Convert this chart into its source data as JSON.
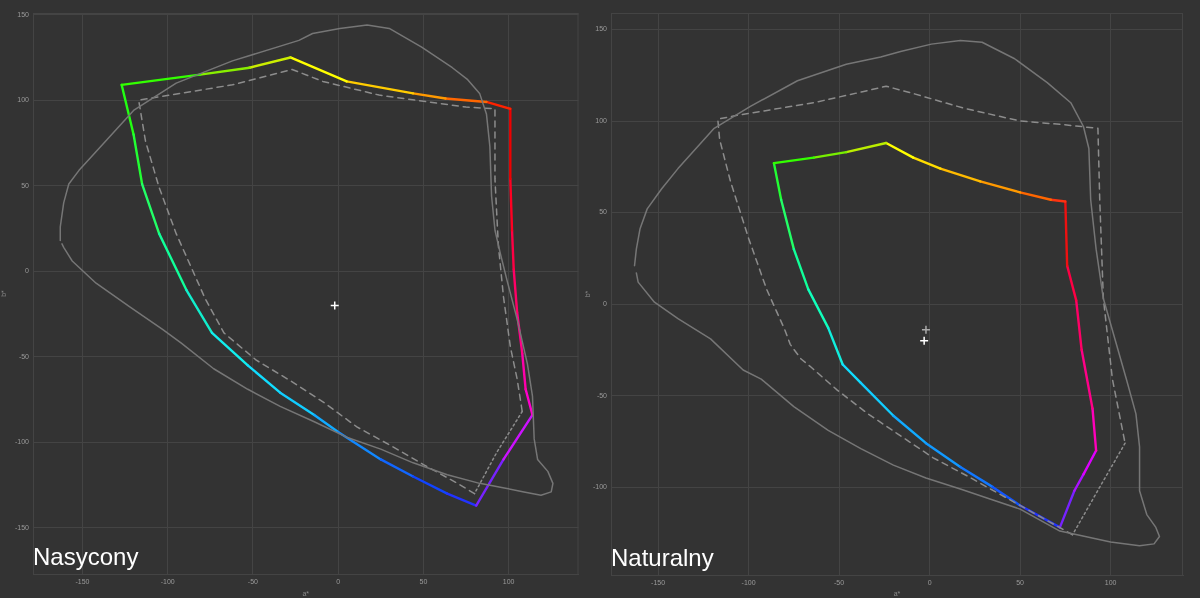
{
  "chart_data": [
    {
      "type": "line",
      "title": "Nasycony",
      "xlabel": "a*",
      "ylabel": "b*",
      "xlim": [
        -179,
        141
      ],
      "ylim": [
        -177,
        151
      ],
      "xticks": [
        -150,
        -100,
        -50,
        0,
        50,
        100
      ],
      "yticks": [
        -150,
        -100,
        -50,
        0,
        50,
        100,
        150
      ],
      "grid": true,
      "series": [
        {
          "color": "#767676",
          "x": [
            -163,
            -163,
            -161,
            -158,
            -152,
            -141,
            -120,
            -95,
            -62,
            -23,
            -15,
            1,
            17,
            30,
            49,
            67,
            76,
            83,
            87,
            89,
            90,
            92,
            95,
            99,
            105,
            111,
            114,
            115,
            117,
            123,
            126,
            125,
            119,
            109,
            99,
            83,
            64,
            44,
            25,
            5,
            -14,
            -34,
            -53,
            -73,
            -92,
            -103,
            -122,
            -142,
            -156,
            -161,
            -162
          ],
          "values": [
            18,
            26,
            40,
            51,
            59,
            71,
            94,
            110,
            123,
            135,
            139,
            142,
            144,
            142,
            131,
            119,
            112,
            104,
            92,
            73,
            44,
            24,
            11,
            -5,
            -28,
            -54,
            -73,
            -98,
            -110,
            -117,
            -124,
            -129,
            -131,
            -129,
            -127,
            -124,
            -119,
            -112,
            -104,
            -97,
            -88,
            -79,
            -69,
            -57,
            -42,
            -34,
            -21,
            -7,
            6,
            14,
            16
          ]
        },
        {
          "color": "#8c8c8c",
          "line_style": "dashed",
          "x": [
            80,
            70,
            50,
            31,
            11,
            -8,
            -28,
            -48,
            -67,
            -78,
            -95,
            -105,
            -113,
            -117,
            -105,
            -62,
            -27,
            -9,
            24,
            53,
            75,
            92,
            92,
            94,
            97,
            101,
            105,
            108
          ],
          "values": [
            -130,
            -124,
            -113,
            -102,
            -91,
            -77,
            -64,
            -52,
            -36,
            -16,
            22,
            49,
            76,
            100,
            102,
            109,
            118,
            111,
            103,
            99,
            96,
            95,
            54,
            15,
            -15,
            -44,
            -63,
            -82
          ]
        },
        {
          "color": "#8c8c8c",
          "line_style": "dotted",
          "x": [
            108,
            93,
            80
          ],
          "values": [
            -82,
            -106,
            -130
          ]
        },
        {
          "color": "#33ff00",
          "x": [
            -127,
            -81
          ],
          "values": [
            109,
            115
          ]
        },
        {
          "color": "#88ee00",
          "x": [
            -81,
            -52
          ],
          "values": [
            115,
            119
          ]
        },
        {
          "color": "#ccee00",
          "x": [
            -52,
            -28
          ],
          "values": [
            119,
            125
          ]
        },
        {
          "color": "#ffff00",
          "x": [
            -28,
            5
          ],
          "values": [
            125,
            111
          ]
        },
        {
          "color": "#ffcc00",
          "x": [
            5,
            44
          ],
          "values": [
            111,
            104
          ]
        },
        {
          "color": "#ff9900",
          "x": [
            44,
            63
          ],
          "values": [
            104,
            101
          ]
        },
        {
          "color": "#ff6600",
          "x": [
            63,
            87
          ],
          "values": [
            101,
            99
          ]
        },
        {
          "color": "#ff2200",
          "x": [
            87,
            101
          ],
          "values": [
            99,
            95
          ]
        },
        {
          "color": "#ee0000",
          "x": [
            101,
            101
          ],
          "values": [
            95,
            54
          ]
        },
        {
          "color": "#ff0022",
          "x": [
            101,
            102
          ],
          "values": [
            54,
            24
          ]
        },
        {
          "color": "#ff0044",
          "x": [
            102,
            103
          ],
          "values": [
            24,
            1
          ]
        },
        {
          "color": "#ff0066",
          "x": [
            103,
            105
          ],
          "values": [
            1,
            -24
          ]
        },
        {
          "color": "#ff0088",
          "x": [
            105,
            108
          ],
          "values": [
            -24,
            -48
          ]
        },
        {
          "color": "#ff00aa",
          "x": [
            108,
            110
          ],
          "values": [
            -48,
            -69
          ]
        },
        {
          "color": "#ff00cc",
          "x": [
            110,
            114
          ],
          "values": [
            -69,
            -84
          ]
        },
        {
          "color": "#cc11ff",
          "x": [
            114,
            97
          ],
          "values": [
            -84,
            -110
          ]
        },
        {
          "color": "#7722ff",
          "x": [
            97,
            81
          ],
          "values": [
            -110,
            -137
          ]
        },
        {
          "color": "#2233ff",
          "x": [
            81,
            64
          ],
          "values": [
            -137,
            -130
          ]
        },
        {
          "color": "#1144ff",
          "x": [
            64,
            44
          ],
          "values": [
            -130,
            -120
          ]
        },
        {
          "color": "#1166ff",
          "x": [
            44,
            25
          ],
          "values": [
            -120,
            -110
          ]
        },
        {
          "color": "#1188ff",
          "x": [
            25,
            0
          ],
          "values": [
            -110,
            -94
          ]
        },
        {
          "color": "#11aaff",
          "x": [
            0,
            -14
          ],
          "values": [
            -94,
            -84
          ]
        },
        {
          "color": "#11ccff",
          "x": [
            -14,
            -34
          ],
          "values": [
            -84,
            -71
          ]
        },
        {
          "color": "#11ddff",
          "x": [
            -34,
            -53
          ],
          "values": [
            -71,
            -55
          ]
        },
        {
          "color": "#11eeee",
          "x": [
            -53,
            -74
          ],
          "values": [
            -55,
            -36
          ]
        },
        {
          "color": "#11eecc",
          "x": [
            -74,
            -89
          ],
          "values": [
            -36,
            -11
          ]
        },
        {
          "color": "#11ff99",
          "x": [
            -89,
            -105
          ],
          "values": [
            -11,
            22
          ]
        },
        {
          "color": "#22ff66",
          "x": [
            -105,
            -115
          ],
          "values": [
            22,
            51
          ]
        },
        {
          "color": "#22ff33",
          "x": [
            -115,
            -120
          ],
          "values": [
            51,
            80
          ]
        },
        {
          "color": "#22ff11",
          "x": [
            -120,
            -127
          ],
          "values": [
            80,
            109
          ]
        },
        {
          "type": "scatter",
          "marker": "cross",
          "color": "#ffffff",
          "x": [
            -2
          ],
          "values": [
            -20
          ]
        }
      ]
    },
    {
      "type": "line",
      "title": "Naturalny",
      "xlabel": "a*",
      "ylabel": "b*",
      "xlim": [
        -176,
        140
      ],
      "ylim": [
        -148,
        159
      ],
      "xticks": [
        -150,
        -100,
        -50,
        0,
        50,
        100
      ],
      "yticks": [
        -100,
        -50,
        0,
        50,
        100,
        150
      ],
      "grid": true,
      "series": [
        {
          "color": "#767676",
          "x": [
            -163,
            -162,
            -160,
            -156,
            -148,
            -139,
            -119,
            -99,
            -73,
            -46,
            -27,
            -16,
            1,
            17,
            29,
            47,
            65,
            78,
            85,
            88,
            89,
            92,
            96,
            109,
            114,
            116,
            116,
            120,
            125,
            127,
            124,
            116,
            100,
            72,
            50,
            35,
            17,
            -2,
            -20,
            -38,
            -56,
            -75,
            -93,
            -103,
            -121,
            -139,
            -152,
            -161,
            -162
          ],
          "values": [
            21,
            30,
            41,
            52,
            63,
            74,
            96,
            108,
            122,
            131,
            135,
            138,
            142,
            144,
            143,
            134,
            121,
            110,
            97,
            85,
            57,
            30,
            3,
            -42,
            -60,
            -78,
            -102,
            -115,
            -122,
            -127,
            -131,
            -132,
            -130,
            -124,
            -112,
            -107,
            -101,
            -95,
            -88,
            -79,
            -69,
            -56,
            -41,
            -36,
            -19,
            -8,
            1,
            12,
            17
          ]
        },
        {
          "color": "#8c8c8c",
          "line_style": "dashed",
          "x": [
            79,
            50,
            39,
            21,
            2,
            -16,
            -34,
            -51,
            -66,
            -71,
            -77,
            -80,
            -90,
            -100,
            -110,
            -116,
            -117,
            -107,
            -64,
            -37,
            -24,
            -9,
            19,
            50,
            74,
            93,
            94,
            96,
            101,
            108
          ],
          "values": [
            -126,
            -110,
            -104,
            -94,
            -84,
            -72,
            -60,
            -47,
            -34,
            -30,
            -22,
            -14,
            8,
            36,
            67,
            90,
            101,
            103,
            110,
            116,
            119,
            115,
            107,
            100,
            98,
            96,
            57,
            3,
            -41,
            -76
          ]
        },
        {
          "color": "#8c8c8c",
          "line_style": "dotted",
          "x": [
            108,
            94,
            79
          ],
          "values": [
            -76,
            -100,
            -126
          ]
        },
        {
          "color": "#33ff00",
          "x": [
            -86,
            -64
          ],
          "values": [
            77,
            80
          ]
        },
        {
          "color": "#77ee00",
          "x": [
            -64,
            -46
          ],
          "values": [
            80,
            83
          ]
        },
        {
          "color": "#bbee00",
          "x": [
            -46,
            -24
          ],
          "values": [
            83,
            88
          ]
        },
        {
          "color": "#ffff00",
          "x": [
            -24,
            -9
          ],
          "values": [
            88,
            80
          ]
        },
        {
          "color": "#ffdd00",
          "x": [
            -9,
            6
          ],
          "values": [
            80,
            74
          ]
        },
        {
          "color": "#ffbb00",
          "x": [
            6,
            28
          ],
          "values": [
            74,
            67
          ]
        },
        {
          "color": "#ff9900",
          "x": [
            28,
            50
          ],
          "values": [
            67,
            61
          ]
        },
        {
          "color": "#ff6600",
          "x": [
            50,
            67
          ],
          "values": [
            61,
            57
          ]
        },
        {
          "color": "#ff3311",
          "x": [
            67,
            75
          ],
          "values": [
            57,
            56
          ]
        },
        {
          "color": "#ee1111",
          "x": [
            75,
            76
          ],
          "values": [
            56,
            21
          ]
        },
        {
          "color": "#ff0044",
          "x": [
            76,
            81
          ],
          "values": [
            21,
            2
          ]
        },
        {
          "color": "#ff0066",
          "x": [
            81,
            84
          ],
          "values": [
            2,
            -25
          ]
        },
        {
          "color": "#ff0088",
          "x": [
            84,
            90
          ],
          "values": [
            -25,
            -57
          ]
        },
        {
          "color": "#ff00bb",
          "x": [
            90,
            92
          ],
          "values": [
            -57,
            -80
          ]
        },
        {
          "color": "#dd00ff",
          "x": [
            92,
            85
          ],
          "values": [
            -80,
            -93
          ]
        },
        {
          "color": "#aa11ff",
          "x": [
            85,
            80
          ],
          "values": [
            -93,
            -102
          ]
        },
        {
          "color": "#7722ff",
          "x": [
            80,
            72
          ],
          "values": [
            -102,
            -122
          ]
        },
        {
          "color": "#2233ff",
          "x": [
            72,
            50
          ],
          "values": [
            -122,
            -110
          ]
        },
        {
          "color": "#1155ff",
          "x": [
            50,
            35
          ],
          "values": [
            -110,
            -100
          ]
        },
        {
          "color": "#1177ff",
          "x": [
            35,
            17
          ],
          "values": [
            -100,
            -89
          ]
        },
        {
          "color": "#1199ff",
          "x": [
            17,
            -2
          ],
          "values": [
            -89,
            -76
          ]
        },
        {
          "color": "#11aaff",
          "x": [
            -2,
            -20
          ],
          "values": [
            -76,
            -61
          ]
        },
        {
          "color": "#11ccff",
          "x": [
            -20,
            -38
          ],
          "values": [
            -61,
            -43
          ]
        },
        {
          "color": "#11ddff",
          "x": [
            -38,
            -48
          ],
          "values": [
            -43,
            -33
          ]
        },
        {
          "color": "#11eedd",
          "x": [
            -48,
            -56
          ],
          "values": [
            -33,
            -13
          ]
        },
        {
          "color": "#11ffbb",
          "x": [
            -56,
            -67
          ],
          "values": [
            -13,
            8
          ]
        },
        {
          "color": "#11ff99",
          "x": [
            -67,
            -75
          ],
          "values": [
            8,
            30
          ]
        },
        {
          "color": "#22ff66",
          "x": [
            -75,
            -82
          ],
          "values": [
            30,
            57
          ]
        },
        {
          "color": "#22ff33",
          "x": [
            -82,
            -86
          ],
          "values": [
            57,
            77
          ]
        },
        {
          "type": "scatter",
          "marker": "cross",
          "color": "#aaaaaa",
          "x": [
            -2
          ],
          "values": [
            -14
          ]
        },
        {
          "type": "scatter",
          "marker": "cross",
          "color": "#ffffff",
          "x": [
            -3
          ],
          "values": [
            -20
          ]
        }
      ]
    }
  ]
}
